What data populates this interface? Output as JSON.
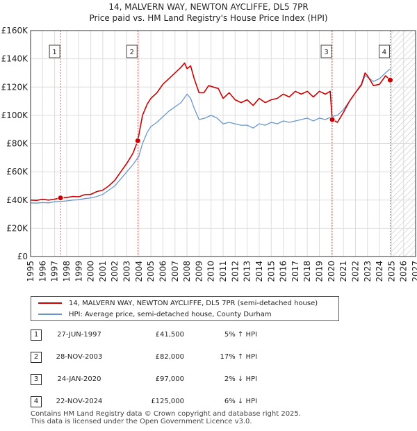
{
  "title": "14, MALVERN WAY, NEWTON AYCLIFFE, DL5 7PR",
  "subtitle": "Price paid vs. HM Land Registry's House Price Index (HPI)",
  "chart_data": {
    "type": "line",
    "xlim": [
      1995,
      2027
    ],
    "ylim": [
      0,
      160000
    ],
    "x_ticks": [
      "1995",
      "1996",
      "1997",
      "1998",
      "1999",
      "2000",
      "2001",
      "2002",
      "2003",
      "2004",
      "2005",
      "2006",
      "2007",
      "2008",
      "2009",
      "2010",
      "2011",
      "2012",
      "2013",
      "2014",
      "2015",
      "2016",
      "2017",
      "2018",
      "2019",
      "2020",
      "2021",
      "2022",
      "2023",
      "2024",
      "2025",
      "2026",
      "2027"
    ],
    "y_ticks": [
      {
        "value": 0,
        "label": "£0"
      },
      {
        "value": 20000,
        "label": "£20K"
      },
      {
        "value": 40000,
        "label": "£40K"
      },
      {
        "value": 60000,
        "label": "£60K"
      },
      {
        "value": 80000,
        "label": "£80K"
      },
      {
        "value": 100000,
        "label": "£100K"
      },
      {
        "value": 120000,
        "label": "£120K"
      },
      {
        "value": 140000,
        "label": "£140K"
      },
      {
        "value": 160000,
        "label": "£160K"
      }
    ],
    "grid": true,
    "future_hatch_from": 2025.0,
    "series": [
      {
        "name": "14, MALVERN WAY, NEWTON AYCLIFFE, DL5 7PR (semi-detached house)",
        "color": "#cc0000",
        "points": [
          [
            1995.0,
            40000
          ],
          [
            1995.5,
            39800
          ],
          [
            1996.0,
            40500
          ],
          [
            1996.5,
            40000
          ],
          [
            1997.0,
            40600
          ],
          [
            1997.49,
            41500
          ],
          [
            1998.0,
            41800
          ],
          [
            1998.5,
            42500
          ],
          [
            1999.0,
            42300
          ],
          [
            1999.5,
            43800
          ],
          [
            2000.0,
            44000
          ],
          [
            2000.5,
            46000
          ],
          [
            2001.0,
            47000
          ],
          [
            2001.5,
            50000
          ],
          [
            2002.0,
            54000
          ],
          [
            2002.5,
            60000
          ],
          [
            2003.0,
            66000
          ],
          [
            2003.5,
            73000
          ],
          [
            2003.91,
            82000
          ],
          [
            2004.3,
            100000
          ],
          [
            2004.7,
            108000
          ],
          [
            2005.0,
            112000
          ],
          [
            2005.5,
            116000
          ],
          [
            2006.0,
            122000
          ],
          [
            2006.5,
            126000
          ],
          [
            2007.0,
            130000
          ],
          [
            2007.5,
            134000
          ],
          [
            2007.8,
            137000
          ],
          [
            2008.0,
            133000
          ],
          [
            2008.3,
            135000
          ],
          [
            2008.6,
            126000
          ],
          [
            2009.0,
            116000
          ],
          [
            2009.4,
            116000
          ],
          [
            2009.8,
            121000
          ],
          [
            2010.2,
            120000
          ],
          [
            2010.6,
            119000
          ],
          [
            2011.0,
            112000
          ],
          [
            2011.5,
            116000
          ],
          [
            2012.0,
            111000
          ],
          [
            2012.5,
            109000
          ],
          [
            2013.0,
            111000
          ],
          [
            2013.5,
            107000
          ],
          [
            2014.0,
            112000
          ],
          [
            2014.5,
            109000
          ],
          [
            2015.0,
            111000
          ],
          [
            2015.5,
            112000
          ],
          [
            2016.0,
            115000
          ],
          [
            2016.5,
            113000
          ],
          [
            2017.0,
            117000
          ],
          [
            2017.5,
            115000
          ],
          [
            2018.0,
            117000
          ],
          [
            2018.5,
            113000
          ],
          [
            2019.0,
            117000
          ],
          [
            2019.5,
            115000
          ],
          [
            2019.9,
            117000
          ],
          [
            2020.07,
            97000
          ],
          [
            2020.5,
            95000
          ],
          [
            2021.0,
            102000
          ],
          [
            2021.5,
            110000
          ],
          [
            2022.0,
            116000
          ],
          [
            2022.5,
            122000
          ],
          [
            2022.8,
            130000
          ],
          [
            2023.0,
            128000
          ],
          [
            2023.5,
            121000
          ],
          [
            2024.0,
            122000
          ],
          [
            2024.5,
            128000
          ],
          [
            2024.89,
            125000
          ]
        ]
      },
      {
        "name": "HPI: Average price, semi-detached house, County Durham",
        "color": "#6b96cc",
        "points": [
          [
            1995.0,
            38000
          ],
          [
            1995.5,
            37800
          ],
          [
            1996.0,
            38200
          ],
          [
            1996.5,
            38000
          ],
          [
            1997.0,
            38800
          ],
          [
            1997.5,
            39000
          ],
          [
            1998.0,
            39400
          ],
          [
            1998.5,
            40000
          ],
          [
            1999.0,
            40200
          ],
          [
            1999.5,
            41000
          ],
          [
            2000.0,
            41500
          ],
          [
            2000.5,
            42500
          ],
          [
            2001.0,
            44000
          ],
          [
            2001.5,
            47000
          ],
          [
            2002.0,
            50000
          ],
          [
            2002.5,
            55000
          ],
          [
            2003.0,
            60000
          ],
          [
            2003.5,
            65000
          ],
          [
            2004.0,
            71000
          ],
          [
            2004.3,
            80000
          ],
          [
            2004.7,
            88000
          ],
          [
            2005.0,
            92000
          ],
          [
            2005.5,
            95000
          ],
          [
            2006.0,
            99000
          ],
          [
            2006.5,
            103000
          ],
          [
            2007.0,
            106000
          ],
          [
            2007.5,
            109000
          ],
          [
            2008.0,
            115000
          ],
          [
            2008.3,
            112000
          ],
          [
            2008.6,
            105000
          ],
          [
            2009.0,
            97000
          ],
          [
            2009.5,
            98000
          ],
          [
            2010.0,
            100000
          ],
          [
            2010.5,
            98000
          ],
          [
            2011.0,
            94000
          ],
          [
            2011.5,
            95000
          ],
          [
            2012.0,
            94000
          ],
          [
            2012.5,
            93000
          ],
          [
            2013.0,
            93000
          ],
          [
            2013.5,
            91000
          ],
          [
            2014.0,
            94000
          ],
          [
            2014.5,
            93000
          ],
          [
            2015.0,
            95000
          ],
          [
            2015.5,
            94000
          ],
          [
            2016.0,
            96000
          ],
          [
            2016.5,
            95000
          ],
          [
            2017.0,
            96000
          ],
          [
            2017.5,
            97000
          ],
          [
            2018.0,
            98000
          ],
          [
            2018.5,
            96000
          ],
          [
            2019.0,
            98000
          ],
          [
            2019.5,
            97000
          ],
          [
            2020.0,
            99000
          ],
          [
            2020.5,
            100000
          ],
          [
            2021.0,
            104000
          ],
          [
            2021.5,
            110000
          ],
          [
            2022.0,
            116000
          ],
          [
            2022.5,
            121000
          ],
          [
            2022.8,
            128000
          ],
          [
            2023.0,
            127000
          ],
          [
            2023.5,
            124000
          ],
          [
            2024.0,
            126000
          ],
          [
            2024.5,
            130000
          ],
          [
            2024.89,
            133000
          ]
        ]
      }
    ],
    "markers": [
      {
        "id": "1",
        "x": 1997.49,
        "y": 41500
      },
      {
        "id": "2",
        "x": 2003.91,
        "y": 82000
      },
      {
        "id": "3",
        "x": 2020.07,
        "y": 97000
      },
      {
        "id": "4",
        "x": 2024.89,
        "y": 125000
      }
    ]
  },
  "legend": {
    "line1": "14, MALVERN WAY, NEWTON AYCLIFFE, DL5 7PR (semi-detached house)",
    "line2": "HPI: Average price, semi-detached house, County Durham"
  },
  "sales": [
    {
      "num": "1",
      "date": "27-JUN-1997",
      "price": "£41,500",
      "hpi": "5% ↑ HPI"
    },
    {
      "num": "2",
      "date": "28-NOV-2003",
      "price": "£82,000",
      "hpi": "17% ↑ HPI"
    },
    {
      "num": "3",
      "date": "24-JAN-2020",
      "price": "£97,000",
      "hpi": "2% ↓ HPI"
    },
    {
      "num": "4",
      "date": "22-NOV-2024",
      "price": "£125,000",
      "hpi": "6% ↓ HPI"
    }
  ],
  "footer": {
    "line1": "Contains HM Land Registry data © Crown copyright and database right 2025.",
    "line2": "This data is licensed under the Open Government Licence v3.0."
  }
}
